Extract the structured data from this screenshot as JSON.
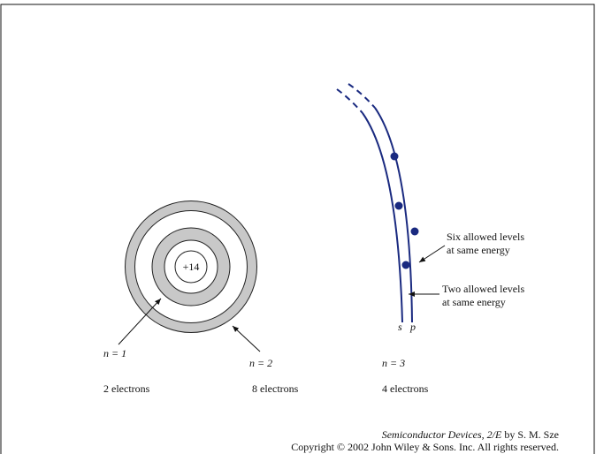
{
  "nucleus": {
    "label": "+14"
  },
  "shells": [
    {
      "label": "n = 1",
      "electrons": "2 electrons"
    },
    {
      "label": "n = 2",
      "electrons": "8 electrons"
    },
    {
      "label": "n = 3",
      "electrons": "4 electrons"
    }
  ],
  "sublevels": {
    "s": "s",
    "p": "p"
  },
  "annotations": {
    "six": [
      "Six allowed levels",
      "at same energy"
    ],
    "two": [
      "Two allowed levels",
      "at same energy"
    ]
  },
  "footer": {
    "book": "Semiconductor Devices, 2/E",
    "author": "by S. M. Sze",
    "copyright": "Copyright © 2002 John Wiley & Sons. Inc. All rights reserved."
  }
}
